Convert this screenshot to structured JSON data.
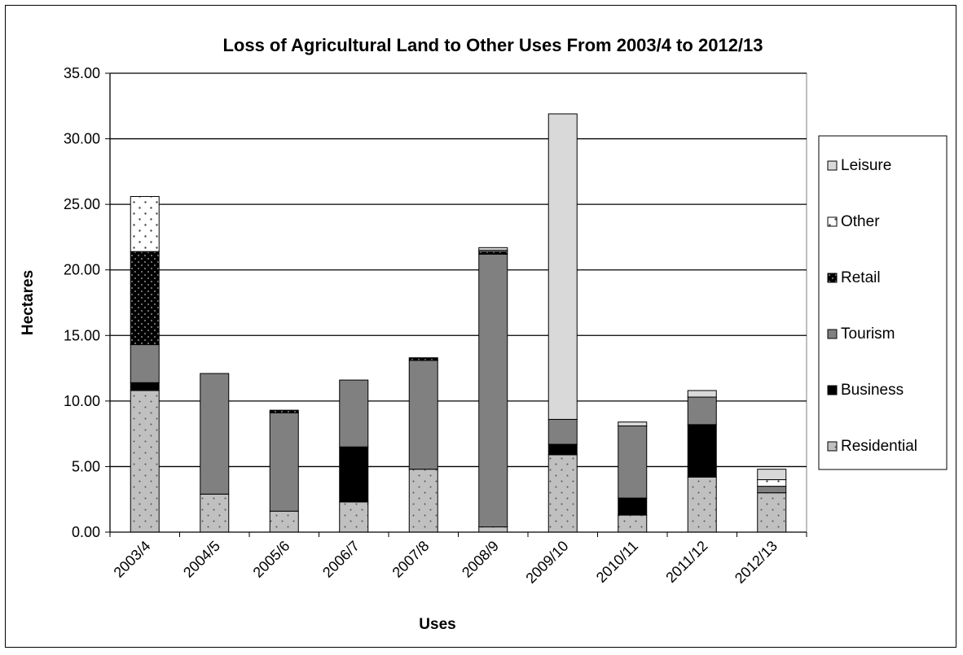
{
  "chart_data": {
    "type": "bar",
    "stacked": true,
    "title": "Loss of Agricultural Land to Other Uses From 2003/4 to 2012/13",
    "xlabel": "Uses",
    "ylabel": "Hectares",
    "ylim": [
      0,
      35
    ],
    "yticks": [
      "0.00",
      "5.00",
      "10.00",
      "15.00",
      "20.00",
      "25.00",
      "30.00",
      "35.00"
    ],
    "grid": "horizontal",
    "legend_position": "right",
    "categories": [
      "2003/4",
      "2004/5",
      "2005/6",
      "2006/7",
      "2007/8",
      "2008/9",
      "2009/10",
      "2010/11",
      "2011/12",
      "2012/13"
    ],
    "series": [
      {
        "name": "Residential",
        "color": "#bfbfbf",
        "pattern": "dots",
        "values": [
          10.8,
          2.9,
          1.6,
          2.3,
          4.8,
          0.4,
          5.9,
          1.3,
          4.2,
          3.0
        ]
      },
      {
        "name": "Business",
        "color": "#000000",
        "pattern": "solid",
        "values": [
          0.6,
          0.0,
          0.0,
          4.2,
          0.0,
          0.0,
          0.8,
          1.3,
          4.0,
          0.0
        ]
      },
      {
        "name": " Tourism",
        "color": "#808080",
        "pattern": "solid",
        "values": [
          2.9,
          9.2,
          7.5,
          5.1,
          8.3,
          20.8,
          1.9,
          5.5,
          2.1,
          0.5
        ]
      },
      {
        "name": "Retail",
        "color": "#000000",
        "pattern": "checker",
        "values": [
          7.1,
          0.0,
          0.2,
          0.0,
          0.2,
          0.2,
          0.0,
          0.0,
          0.0,
          0.0
        ]
      },
      {
        "name": "Other",
        "color": "#ffffff",
        "pattern": "dots",
        "values": [
          4.2,
          0.0,
          0.0,
          0.0,
          0.0,
          0.1,
          0.0,
          0.0,
          0.0,
          0.5
        ]
      },
      {
        "name": "Leisure",
        "color": "#d9d9d9",
        "pattern": "solid",
        "values": [
          0.0,
          0.0,
          0.0,
          0.0,
          0.0,
          0.2,
          23.3,
          0.3,
          0.5,
          0.8
        ]
      }
    ],
    "legend_order": [
      "Leisure",
      "Other",
      "Retail",
      " Tourism",
      "Business",
      "Residential"
    ]
  }
}
